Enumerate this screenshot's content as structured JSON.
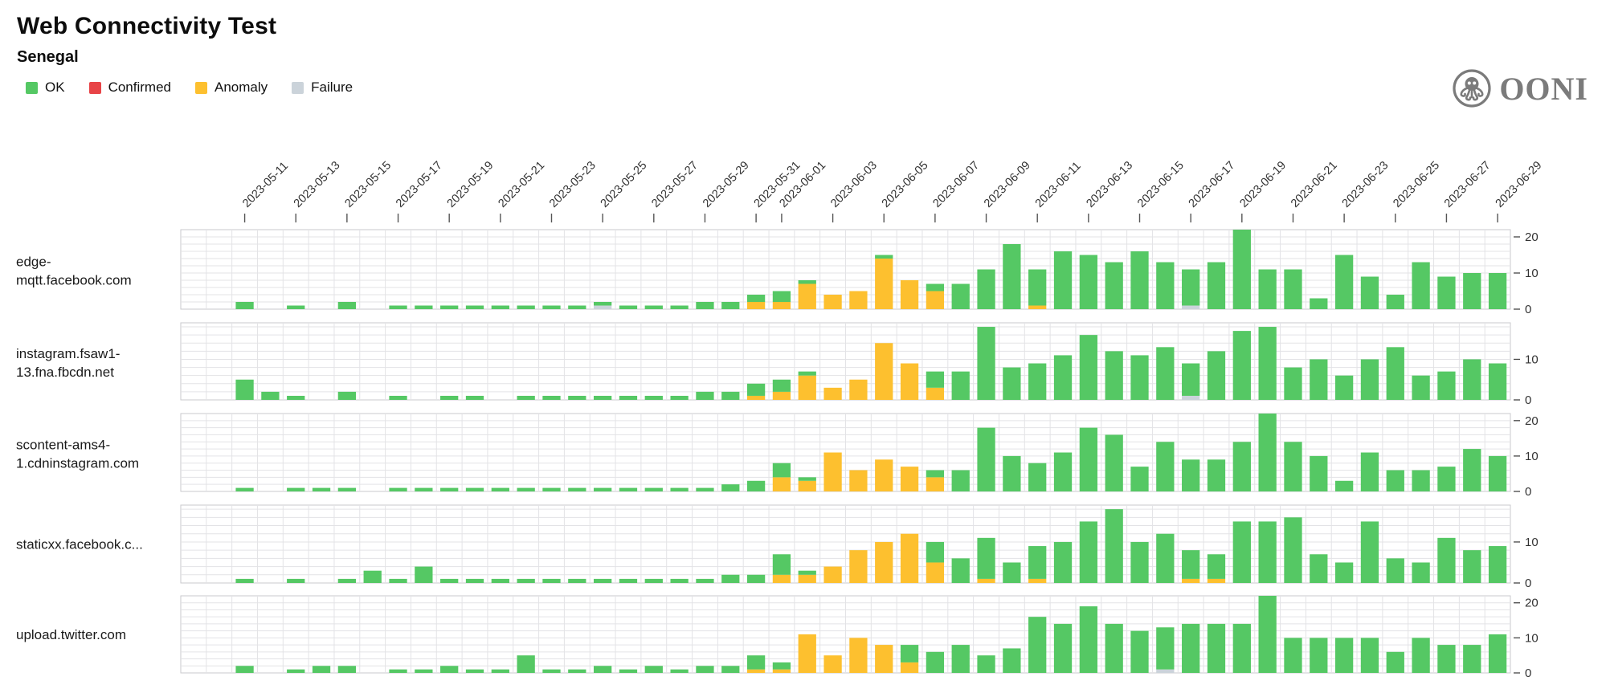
{
  "header": {
    "title": "Web Connectivity Test",
    "subtitle": "Senegal"
  },
  "logo": {
    "text": "OONI"
  },
  "colors": {
    "ok": "#55C864",
    "confirmed": "#E84447",
    "anomaly": "#FDC02F",
    "failure": "#CBD3DA",
    "grid": "#E3E3E6",
    "row_border": "#C9C9CD",
    "axis_text": "#333333",
    "tick": "#555555"
  },
  "legend": [
    {
      "key": "ok",
      "label": "OK"
    },
    {
      "key": "confirmed",
      "label": "Confirmed"
    },
    {
      "key": "anomaly",
      "label": "Anomaly"
    },
    {
      "key": "failure",
      "label": "Failure"
    }
  ],
  "chart_data": {
    "type": "bar",
    "stacked": true,
    "title": "Web Connectivity Test",
    "subtitle": "Senegal",
    "stack_order": [
      "anomaly",
      "confirmed",
      "failure",
      "ok"
    ],
    "grid": true,
    "y_grid_step": 2,
    "legend_position": "top-left",
    "dates": [
      "2023-05-09",
      "2023-05-10",
      "2023-05-11",
      "2023-05-12",
      "2023-05-13",
      "2023-05-14",
      "2023-05-15",
      "2023-05-16",
      "2023-05-17",
      "2023-05-18",
      "2023-05-19",
      "2023-05-20",
      "2023-05-21",
      "2023-05-22",
      "2023-05-23",
      "2023-05-24",
      "2023-05-25",
      "2023-05-26",
      "2023-05-27",
      "2023-05-28",
      "2023-05-29",
      "2023-05-30",
      "2023-05-31",
      "2023-06-01",
      "2023-06-02",
      "2023-06-03",
      "2023-06-04",
      "2023-06-05",
      "2023-06-06",
      "2023-06-07",
      "2023-06-08",
      "2023-06-09",
      "2023-06-10",
      "2023-06-11",
      "2023-06-12",
      "2023-06-13",
      "2023-06-14",
      "2023-06-15",
      "2023-06-16",
      "2023-06-17",
      "2023-06-18",
      "2023-06-19",
      "2023-06-20",
      "2023-06-21",
      "2023-06-22",
      "2023-06-23",
      "2023-06-24",
      "2023-06-25",
      "2023-06-26",
      "2023-06-27",
      "2023-06-28",
      "2023-06-29"
    ],
    "x_tick_dates": [
      "2023-05-11",
      "2023-05-13",
      "2023-05-15",
      "2023-05-17",
      "2023-05-19",
      "2023-05-21",
      "2023-05-23",
      "2023-05-25",
      "2023-05-27",
      "2023-05-29",
      "2023-05-31",
      "2023-06-01",
      "2023-06-03",
      "2023-06-05",
      "2023-06-07",
      "2023-06-09",
      "2023-06-11",
      "2023-06-13",
      "2023-06-15",
      "2023-06-17",
      "2023-06-19",
      "2023-06-21",
      "2023-06-23",
      "2023-06-25",
      "2023-06-27",
      "2023-06-29"
    ],
    "rows": [
      {
        "label": "edge-mqtt.facebook.com",
        "label_lines": [
          "edge-",
          "mqtt.facebook.com"
        ],
        "ymax": 22,
        "yticks": [
          0,
          10,
          20
        ],
        "series": {
          "ok": [
            0,
            0,
            2,
            0,
            1,
            0,
            2,
            0,
            1,
            1,
            1,
            1,
            1,
            1,
            1,
            1,
            1,
            1,
            1,
            1,
            2,
            2,
            2,
            3,
            1,
            0,
            0,
            1,
            0,
            2,
            7,
            11,
            18,
            10,
            16,
            15,
            13,
            16,
            13,
            10,
            13,
            22,
            11,
            11,
            3,
            15,
            9,
            4,
            13,
            9,
            10,
            10
          ],
          "anomaly": {
            "2023-05-31": 2,
            "2023-06-01": 2,
            "2023-06-02": 7,
            "2023-06-03": 4,
            "2023-06-04": 5,
            "2023-06-05": 14,
            "2023-06-06": 8,
            "2023-06-07": 5,
            "2023-06-11": 1
          },
          "failure": {
            "2023-05-25": 1,
            "2023-06-17": 1
          },
          "confirmed": {}
        }
      },
      {
        "label": "instagram.fsaw1-13.fna.fbcdn.net",
        "label_lines": [
          "instagram.fsaw1-",
          "13.fna.fbcdn.net"
        ],
        "ymax": 19,
        "yticks": [
          0,
          10
        ],
        "series": {
          "ok": [
            0,
            0,
            5,
            2,
            1,
            0,
            2,
            0,
            1,
            0,
            1,
            1,
            0,
            1,
            1,
            1,
            1,
            1,
            1,
            1,
            2,
            2,
            3,
            3,
            1,
            0,
            0,
            0,
            0,
            4,
            7,
            18,
            8,
            9,
            11,
            16,
            12,
            11,
            13,
            8,
            12,
            17,
            18,
            8,
            10,
            6,
            10,
            13,
            6,
            7,
            10,
            9
          ],
          "anomaly": {
            "2023-05-31": 1,
            "2023-06-01": 2,
            "2023-06-02": 6,
            "2023-06-03": 3,
            "2023-06-04": 5,
            "2023-06-05": 14,
            "2023-06-06": 9,
            "2023-06-07": 3
          },
          "failure": {
            "2023-06-17": 1
          },
          "confirmed": {}
        }
      },
      {
        "label": "scontent-ams4-1.cdninstagram.com",
        "label_lines": [
          "scontent-ams4-",
          "1.cdninstagram.com"
        ],
        "ymax": 22,
        "yticks": [
          0,
          10,
          20
        ],
        "series": {
          "ok": [
            0,
            0,
            1,
            0,
            1,
            1,
            1,
            0,
            1,
            1,
            1,
            1,
            1,
            1,
            1,
            1,
            1,
            1,
            1,
            1,
            1,
            2,
            3,
            4,
            1,
            0,
            0,
            0,
            0,
            2,
            6,
            18,
            10,
            8,
            11,
            18,
            16,
            7,
            14,
            9,
            9,
            14,
            22,
            14,
            10,
            3,
            11,
            6,
            6,
            7,
            12,
            10
          ],
          "anomaly": {
            "2023-06-01": 4,
            "2023-06-02": 3,
            "2023-06-03": 11,
            "2023-06-04": 6,
            "2023-06-05": 9,
            "2023-06-06": 7,
            "2023-06-07": 4
          },
          "failure": {},
          "confirmed": {}
        }
      },
      {
        "label": "staticxx.facebook.c...",
        "label_lines": [
          "staticxx.facebook.c..."
        ],
        "ymax": 19,
        "yticks": [
          0,
          10
        ],
        "series": {
          "ok": [
            0,
            0,
            1,
            0,
            1,
            0,
            1,
            3,
            1,
            4,
            1,
            1,
            1,
            1,
            1,
            1,
            1,
            1,
            1,
            1,
            1,
            2,
            2,
            5,
            1,
            0,
            0,
            0,
            0,
            5,
            6,
            10,
            5,
            8,
            10,
            15,
            18,
            10,
            12,
            7,
            6,
            15,
            15,
            16,
            7,
            5,
            15,
            6,
            5,
            11,
            8,
            9
          ],
          "anomaly": {
            "2023-06-01": 2,
            "2023-06-02": 2,
            "2023-06-03": 4,
            "2023-06-04": 8,
            "2023-06-05": 10,
            "2023-06-06": 12,
            "2023-06-07": 5,
            "2023-06-09": 1,
            "2023-06-11": 1,
            "2023-06-17": 1,
            "2023-06-18": 1
          },
          "failure": {},
          "confirmed": {}
        }
      },
      {
        "label": "upload.twitter.com",
        "label_lines": [
          "upload.twitter.com"
        ],
        "ymax": 22,
        "yticks": [
          0,
          10,
          20
        ],
        "series": {
          "ok": [
            0,
            0,
            2,
            0,
            1,
            2,
            2,
            0,
            1,
            1,
            2,
            1,
            1,
            5,
            1,
            1,
            2,
            1,
            2,
            1,
            2,
            2,
            4,
            2,
            0,
            0,
            0,
            0,
            5,
            6,
            8,
            5,
            7,
            16,
            14,
            19,
            14,
            12,
            12,
            14,
            14,
            14,
            22,
            10,
            10,
            10,
            10,
            6,
            10,
            8,
            8,
            11
          ],
          "anomaly": {
            "2023-05-31": 1,
            "2023-06-01": 1,
            "2023-06-02": 11,
            "2023-06-03": 5,
            "2023-06-04": 10,
            "2023-06-05": 8,
            "2023-06-06": 3
          },
          "failure": {
            "2023-06-16": 1
          },
          "confirmed": {}
        }
      }
    ]
  }
}
